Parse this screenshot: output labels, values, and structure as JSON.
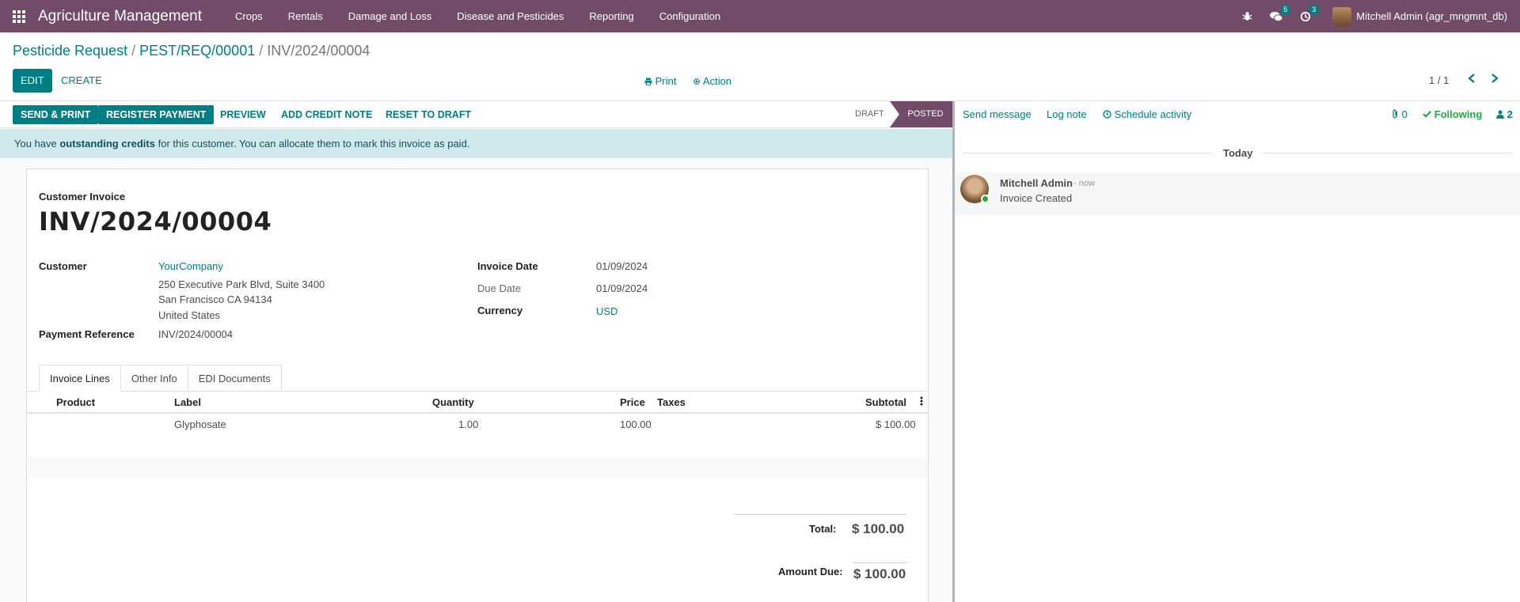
{
  "app": {
    "brand": "Agriculture Management",
    "menu": [
      "Crops",
      "Rentals",
      "Damage and Loss",
      "Disease and Pesticides",
      "Reporting",
      "Configuration"
    ],
    "messages_badge": "5",
    "activities_badge": "3",
    "user": "Mitchell Admin (agr_mngmnt_db)"
  },
  "breadcrumb": {
    "items": [
      "Pesticide Request",
      "PEST/REQ/00001"
    ],
    "current": "INV/2024/00004",
    "sep": "/"
  },
  "control_panel": {
    "edit": "EDIT",
    "create": "CREATE",
    "print": "Print",
    "action": "Action",
    "pager": "1 / 1"
  },
  "status_bar": {
    "buttons": [
      "SEND & PRINT",
      "REGISTER PAYMENT",
      "PREVIEW",
      "ADD CREDIT NOTE",
      "RESET TO DRAFT"
    ],
    "stages": [
      "DRAFT",
      "POSTED"
    ],
    "active_stage": "POSTED"
  },
  "alert": {
    "prefix": "You have ",
    "bold": "outstanding credits",
    "suffix": " for this customer. You can allocate them to mark this invoice as paid."
  },
  "invoice": {
    "type": "Customer Invoice",
    "name": "INV/2024/00004",
    "customer_label": "Customer",
    "customer": "YourCompany",
    "address_1": "250 Executive Park Blvd, Suite 3400",
    "address_2": "San Francisco CA 94134",
    "address_3": "United States",
    "payment_ref_label": "Payment Reference",
    "payment_ref": "INV/2024/00004",
    "invoice_date_label": "Invoice Date",
    "invoice_date": "01/09/2024",
    "due_date_label": "Due Date",
    "due_date": "01/09/2024",
    "currency_label": "Currency",
    "currency": "USD"
  },
  "tabs": [
    "Invoice Lines",
    "Other Info",
    "EDI Documents"
  ],
  "table": {
    "headers": {
      "product": "Product",
      "label": "Label",
      "quantity": "Quantity",
      "price": "Price",
      "taxes": "Taxes",
      "subtotal": "Subtotal"
    },
    "rows": [
      {
        "product": "",
        "label": "Glyphosate",
        "quantity": "1.00",
        "price": "100.00",
        "taxes": "",
        "subtotal": "$ 100.00"
      }
    ]
  },
  "totals": {
    "total_label": "Total:",
    "total": "$ 100.00",
    "due_label": "Amount Due:",
    "due": "$ 100.00"
  },
  "chatter": {
    "send_message": "Send message",
    "log_note": "Log note",
    "schedule_activity": "Schedule activity",
    "attachments": "0",
    "following": "Following",
    "followers": "2",
    "today": "Today",
    "author": "Mitchell Admin",
    "date": "- now",
    "body": "Invoice Created"
  },
  "colors": {
    "navbar": "#714b67",
    "primary": "#017e84",
    "alert_bg": "#cfe9ec",
    "following": "#28a745"
  }
}
